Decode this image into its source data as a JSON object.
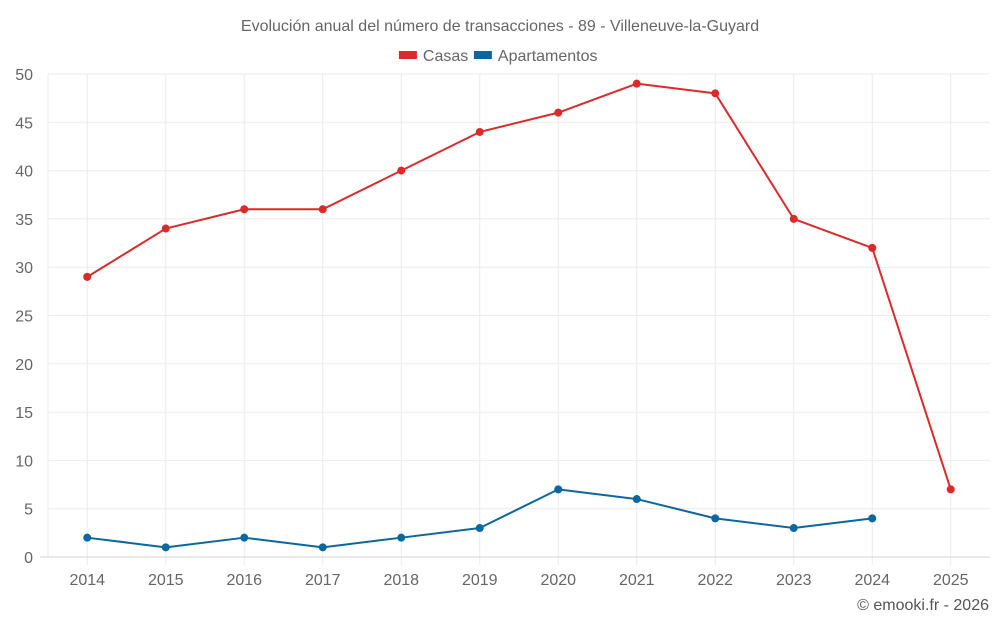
{
  "chart_data": {
    "type": "line",
    "title": "Evolución anual del número de transacciones - 89 - Villeneuve-la-Guyard",
    "xlabel": "",
    "ylabel": "",
    "x": [
      "2014",
      "2015",
      "2016",
      "2017",
      "2018",
      "2019",
      "2020",
      "2021",
      "2022",
      "2023",
      "2024",
      "2025"
    ],
    "ylim": [
      0,
      50
    ],
    "yticks": [
      0,
      5,
      10,
      15,
      20,
      25,
      30,
      35,
      40,
      45,
      50
    ],
    "grid": true,
    "legend_position": "top-center",
    "series": [
      {
        "name": "Casas",
        "color": "#dc2a2a",
        "values": [
          29,
          34,
          36,
          36,
          40,
          44,
          46,
          49,
          48,
          35,
          32,
          7
        ]
      },
      {
        "name": "Apartamentos",
        "color": "#0a67a0",
        "values": [
          2,
          1,
          2,
          1,
          2,
          3,
          7,
          6,
          4,
          3,
          4,
          null
        ]
      }
    ],
    "footer": "© emooki.fr - 2026"
  }
}
